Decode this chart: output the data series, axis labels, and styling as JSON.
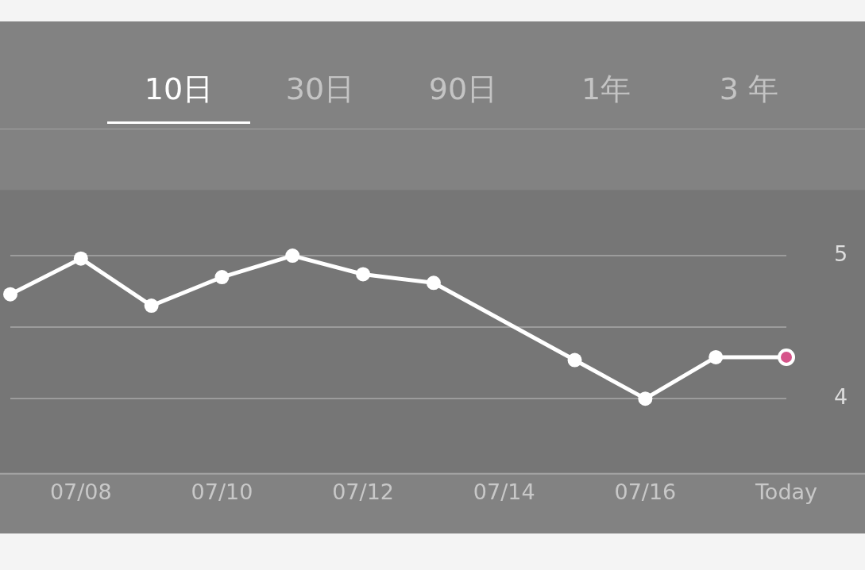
{
  "chart_data": {
    "type": "line",
    "annotations": [
      "10日",
      "30日",
      "90日",
      "1年",
      "3 年"
    ],
    "categories": [
      null,
      "07/08",
      null,
      "07/10",
      null,
      "07/12",
      null,
      "07/14",
      null,
      "07/16",
      null,
      "Today"
    ],
    "series": [
      {
        "color": "#ffffff",
        "colors": [
          "#ffffff",
          "#ffffff",
          "#ffffff",
          "#ffffff",
          "#ffffff",
          "#ffffff",
          "#ffffff",
          "#ffffff",
          "#ffffff",
          "#ffffff",
          "#ffffff",
          "#d6548a"
        ],
        "values": [
          4.73,
          4.98,
          4.65,
          4.85,
          5.0,
          4.87,
          4.81,
          null,
          4.27,
          4.0,
          4.29,
          4.29
        ]
      }
    ],
    "ylim": [
      3.48,
      5.46
    ],
    "yticks": [
      4,
      {
        "value": 4.5,
        "label": null
      },
      5
    ],
    "grid": "y",
    "legend": false,
    "marker": "circle",
    "line_style": "solid"
  }
}
